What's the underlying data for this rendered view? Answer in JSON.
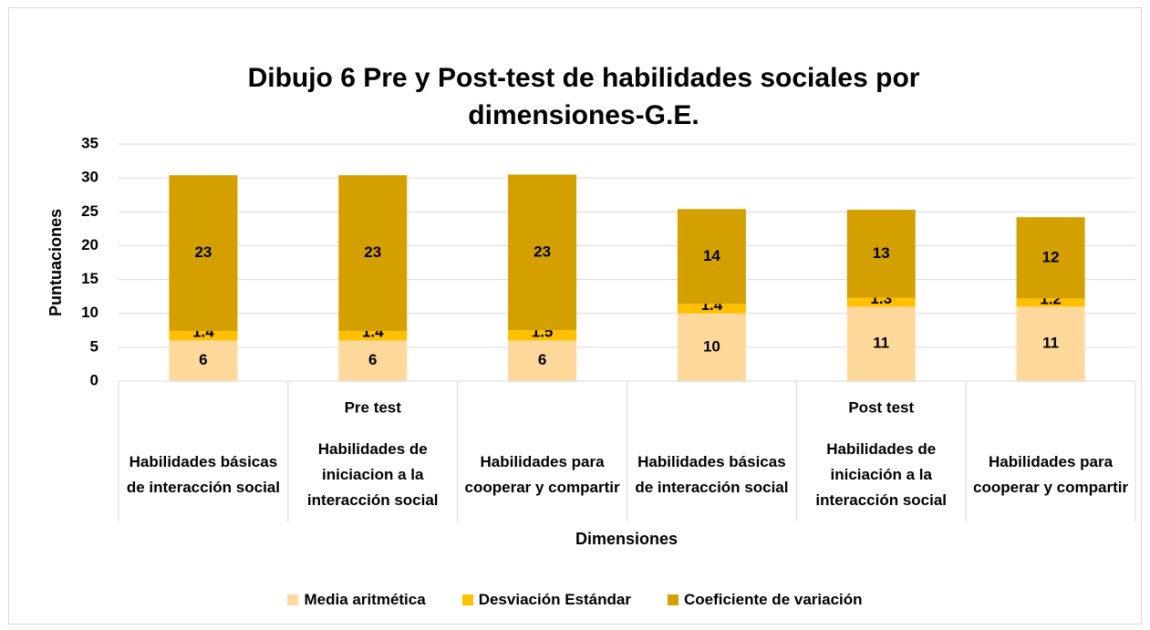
{
  "chart_data": {
    "type": "stacked_bar",
    "title": "Dibujo 6 Pre y Post-test de habilidades sociales por dimensiones-G.E.",
    "x_label": "Dimensiones",
    "y_label": "Puntuaciones",
    "category_groups": [
      {
        "name": "Pre test",
        "categories": [
          "Habilidades básicas de interacción social",
          "Habilidades de iniciacion a la interacción social",
          "Habilidades para cooperar y compartir"
        ]
      },
      {
        "name": "Post test",
        "categories": [
          "Habilidades básicas de interacción social",
          "Habilidades de iniciación a la interacción social",
          "Habilidades para cooperar y compartir"
        ]
      }
    ],
    "series": [
      {
        "name": "Media aritmética",
        "color": "#ffd89c",
        "values": [
          6,
          6,
          6,
          10,
          11,
          11
        ]
      },
      {
        "name": "Desviación Estándar",
        "color": "#ffc000",
        "values": [
          1.4,
          1.4,
          1.5,
          1.4,
          1.3,
          1.2
        ]
      },
      {
        "name": "Coeficiente de variación",
        "color": "#d4a000",
        "values": [
          23,
          23,
          23,
          14,
          13,
          12
        ]
      }
    ],
    "ylim": [
      0,
      35
    ],
    "yticks": [
      0,
      5,
      10,
      15,
      20,
      25,
      30,
      35
    ],
    "grid": true,
    "legend": "bottom"
  }
}
